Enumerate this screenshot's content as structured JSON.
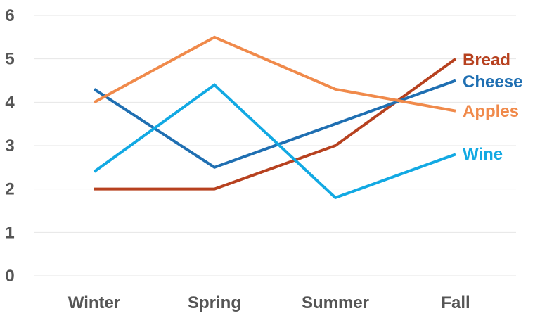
{
  "chart_data": {
    "type": "line",
    "title": "",
    "xlabel": "",
    "ylabel": "",
    "categories": [
      "Winter",
      "Spring",
      "Summer",
      "Fall"
    ],
    "ylim": [
      0,
      6
    ],
    "yticks": [
      "0",
      "1",
      "2",
      "3",
      "4",
      "5",
      "6"
    ],
    "grid": true,
    "legend": "inline labels at line ends (right)",
    "series": [
      {
        "name": "Bread",
        "color": "#b7411f",
        "values": [
          2.0,
          2.0,
          3.0,
          5.0
        ]
      },
      {
        "name": "Cheese",
        "color": "#1f6fb2",
        "values": [
          4.3,
          2.5,
          3.5,
          4.5
        ]
      },
      {
        "name": "Apples",
        "color": "#f08a4b",
        "values": [
          4.0,
          5.5,
          4.3,
          3.8
        ]
      },
      {
        "name": "Wine",
        "color": "#12a9e3",
        "values": [
          2.4,
          4.4,
          1.8,
          2.8
        ]
      }
    ]
  }
}
